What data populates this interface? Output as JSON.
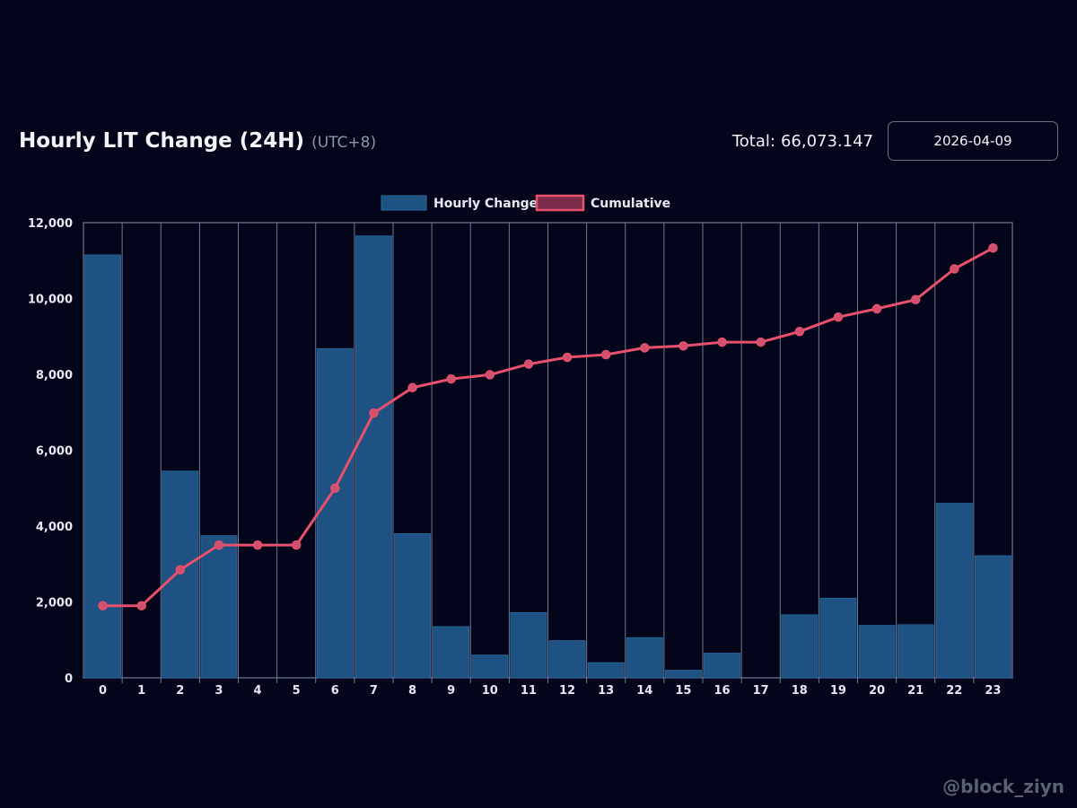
{
  "header": {
    "title": "Hourly LIT Change (24H)",
    "timezone": "(UTC+8)",
    "total_label": "Total:",
    "total_value": "66,073.147",
    "date": "2026-04-09"
  },
  "watermark": "@block_ziyn",
  "colors": {
    "background": "#03061a",
    "bar": "#1e5283",
    "line": "#e8506c",
    "grid": "#6f7891"
  },
  "chart_data": {
    "type": "bar",
    "categories": [
      "0",
      "1",
      "2",
      "3",
      "4",
      "5",
      "6",
      "7",
      "8",
      "9",
      "10",
      "11",
      "12",
      "13",
      "14",
      "15",
      "16",
      "17",
      "18",
      "19",
      "20",
      "21",
      "22",
      "23"
    ],
    "series": [
      {
        "name": "Hourly Change",
        "type": "bar",
        "values": [
          11150,
          0,
          5450,
          3750,
          0,
          0,
          8680,
          11650,
          3800,
          1350,
          600,
          1720,
          980,
          400,
          1060,
          200,
          650,
          0,
          1660,
          2100,
          1380,
          1400,
          4600,
          3220
        ]
      },
      {
        "name": "Cumulative",
        "type": "line",
        "values": [
          1900,
          1900,
          2850,
          3500,
          3500,
          3500,
          5000,
          6980,
          7650,
          7880,
          7990,
          8270,
          8450,
          8520,
          8700,
          8750,
          8850,
          8850,
          9130,
          9510,
          9730,
          9970,
          10780,
          11330
        ]
      }
    ],
    "ylim": [
      0,
      12000
    ],
    "yticks": [
      "0",
      "2,000",
      "4,000",
      "6,000",
      "8,000",
      "10,000",
      "12,000"
    ],
    "legend": "top-center",
    "grid": true
  }
}
